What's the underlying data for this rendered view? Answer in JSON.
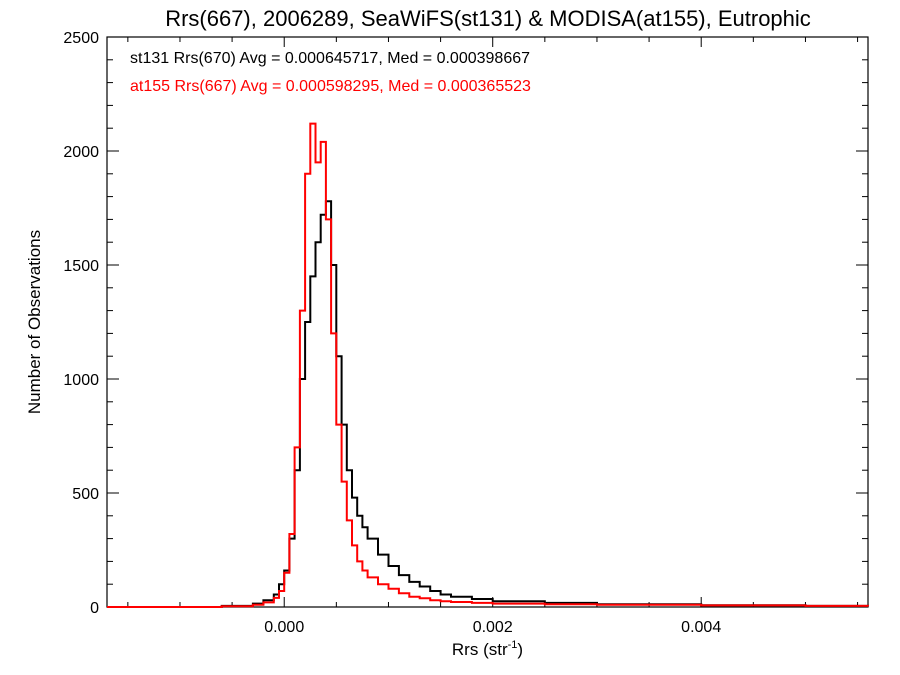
{
  "chart_data": {
    "type": "histogram",
    "title": "Rrs(667), 2006289, SeaWiFS(st131) & MODISA(at155), Eutrophic",
    "xlabel": "Rrs (str",
    "xlabel_sup": "-1",
    "xlabel_end": ")",
    "ylabel": "Number of Observations",
    "xlim": [
      -0.0017,
      0.0056
    ],
    "ylim": [
      0,
      2500
    ],
    "x_ticks": [
      {
        "value": 0.0,
        "label": "0.000"
      },
      {
        "value": 0.002,
        "label": "0.002"
      },
      {
        "value": 0.004,
        "label": "0.004"
      }
    ],
    "y_ticks": [
      {
        "value": 0,
        "label": "0"
      },
      {
        "value": 500,
        "label": "500"
      },
      {
        "value": 1000,
        "label": "1000"
      },
      {
        "value": 1500,
        "label": "1500"
      },
      {
        "value": 2000,
        "label": "2000"
      },
      {
        "value": 2500,
        "label": "2500"
      }
    ],
    "grid": false,
    "legend_position": "top-left",
    "series": [
      {
        "name": "st131 Rrs(670)",
        "color": "#000000",
        "legend": "st131 Rrs(670) Avg = 0.000645717, Med = 0.000398667",
        "x": [
          -0.0017,
          -0.001,
          -0.0006,
          -0.0003,
          -0.0002,
          -0.0001,
          -5e-05,
          0,
          5e-05,
          0.0001,
          0.00015,
          0.0002,
          0.00025,
          0.0003,
          0.00035,
          0.0004,
          0.00045,
          0.0005,
          0.00055,
          0.0006,
          0.00065,
          0.0007,
          0.00075,
          0.0008,
          0.0009,
          0.001,
          0.0011,
          0.0012,
          0.0013,
          0.0014,
          0.0015,
          0.0016,
          0.0018,
          0.002,
          0.0025,
          0.003,
          0.004,
          0.005,
          0.0056
        ],
        "y": [
          0,
          0,
          5,
          15,
          30,
          55,
          100,
          160,
          300,
          600,
          1000,
          1250,
          1450,
          1600,
          1720,
          1780,
          1500,
          1100,
          800,
          600,
          480,
          400,
          350,
          300,
          230,
          180,
          140,
          110,
          90,
          70,
          55,
          45,
          35,
          25,
          18,
          12,
          8,
          5,
          3
        ]
      },
      {
        "name": "at155 Rrs(667)",
        "color": "#ff0000",
        "legend": "at155 Rrs(667) Avg = 0.000598295, Med = 0.000365523",
        "x": [
          -0.0017,
          -0.001,
          -0.0006,
          -0.0003,
          -0.0002,
          -0.0001,
          -5e-05,
          0,
          5e-05,
          0.0001,
          0.00015,
          0.0002,
          0.00025,
          0.0003,
          0.00035,
          0.0004,
          0.00045,
          0.0005,
          0.00055,
          0.0006,
          0.00065,
          0.0007,
          0.00075,
          0.0008,
          0.0009,
          0.001,
          0.0011,
          0.0012,
          0.0013,
          0.0014,
          0.0015,
          0.0016,
          0.0018,
          0.002,
          0.0025,
          0.003,
          0.004,
          0.005,
          0.0056
        ],
        "y": [
          0,
          0,
          3,
          10,
          20,
          40,
          70,
          150,
          320,
          700,
          1300,
          1900,
          2120,
          1950,
          2040,
          1700,
          1200,
          800,
          550,
          380,
          270,
          200,
          160,
          130,
          100,
          80,
          60,
          45,
          38,
          30,
          25,
          22,
          18,
          15,
          12,
          10,
          7,
          5,
          3
        ]
      }
    ]
  }
}
